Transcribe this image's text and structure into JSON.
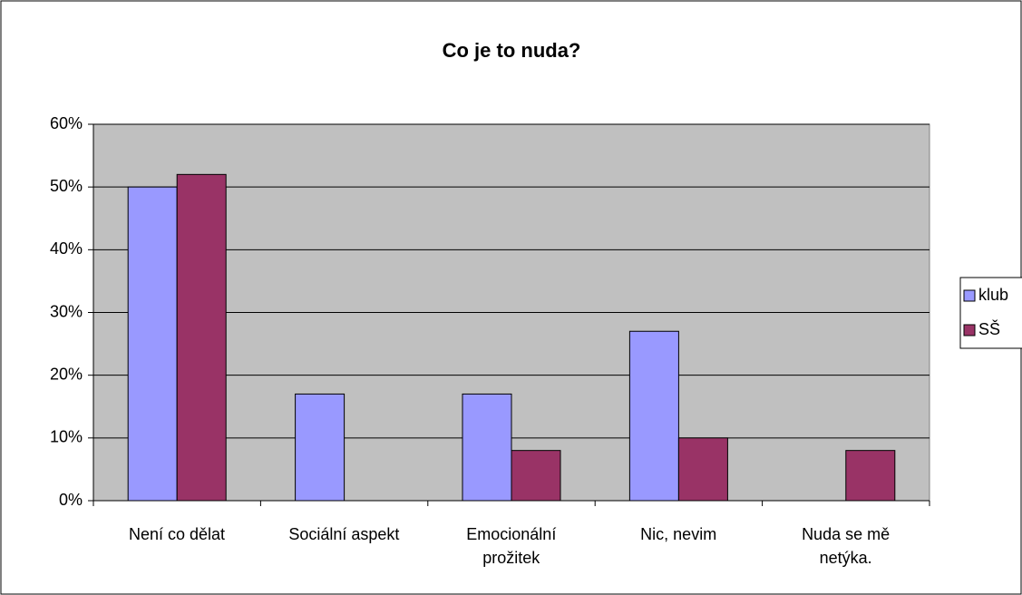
{
  "chart_data": {
    "type": "bar",
    "title": "Co je to nuda?",
    "categories": [
      "Není co dělat",
      "Sociální aspekt",
      "Emocionální\nprožitek",
      "Nic, nevim",
      "Nuda se mě\nnetýka."
    ],
    "series": [
      {
        "name": "klub",
        "color": "#9999ff",
        "values": [
          50,
          17,
          17,
          27,
          0
        ]
      },
      {
        "name": "SŠ",
        "color": "#993366",
        "values": [
          52,
          0,
          8,
          10,
          8
        ]
      }
    ],
    "ylim": [
      0,
      60
    ],
    "yticks": [
      {
        "value": 0,
        "label": "0%"
      },
      {
        "value": 10,
        "label": "10%"
      },
      {
        "value": 20,
        "label": "20%"
      },
      {
        "value": 30,
        "label": "30%"
      },
      {
        "value": 40,
        "label": "40%"
      },
      {
        "value": 50,
        "label": "50%"
      },
      {
        "value": 60,
        "label": "60%"
      }
    ],
    "grid": true,
    "legend": "right",
    "plot_background": "#c0c0c0"
  }
}
